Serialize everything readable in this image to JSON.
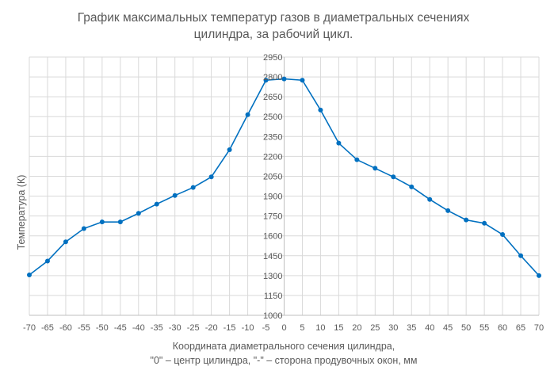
{
  "chart_data": {
    "type": "line",
    "title_lines": [
      "График максимальных температур газов в диаметральных сечениях",
      "цилиндра, за рабочий цикл."
    ],
    "xlabel_lines": [
      "Координата диаметрального сечения цилиндра,",
      "\"0\" – центр цилиндра, \"-\" – сторона продувочных окон, мм"
    ],
    "ylabel": "Температура (К)",
    "x": [
      -70,
      -65,
      -60,
      -55,
      -50,
      -45,
      -40,
      -35,
      -30,
      -25,
      -20,
      -15,
      -10,
      -5,
      0,
      5,
      10,
      15,
      20,
      25,
      30,
      35,
      40,
      45,
      50,
      55,
      60,
      65,
      70
    ],
    "series": [
      {
        "values": [
          1305,
          1410,
          1555,
          1655,
          1705,
          1705,
          1770,
          1840,
          1905,
          1965,
          2045,
          2250,
          2515,
          2775,
          2785,
          2775,
          2550,
          2300,
          2175,
          2110,
          2045,
          1970,
          1875,
          1790,
          1720,
          1695,
          1610,
          1450,
          1300
        ]
      }
    ],
    "xlim": [
      -70,
      70
    ],
    "ylim": [
      1000,
      2950
    ],
    "x_ticks": [
      -70,
      -65,
      -60,
      -55,
      -50,
      -45,
      -40,
      -35,
      -30,
      -25,
      -20,
      -15,
      -10,
      -5,
      0,
      5,
      10,
      15,
      20,
      25,
      30,
      35,
      40,
      45,
      50,
      55,
      60,
      65,
      70
    ],
    "y_ticks": [
      1000,
      1150,
      1300,
      1450,
      1600,
      1750,
      1900,
      2050,
      2200,
      2350,
      2500,
      2650,
      2800,
      2950
    ],
    "y_axis_position": "center, at x = 0",
    "grid": {
      "horizontal": true,
      "vertical": true
    },
    "markers": true,
    "legend": "none",
    "colors": {
      "series": "#0070c0",
      "grid": "#d9d9d9",
      "axis": "#bfbfbf",
      "text": "#595959"
    }
  }
}
